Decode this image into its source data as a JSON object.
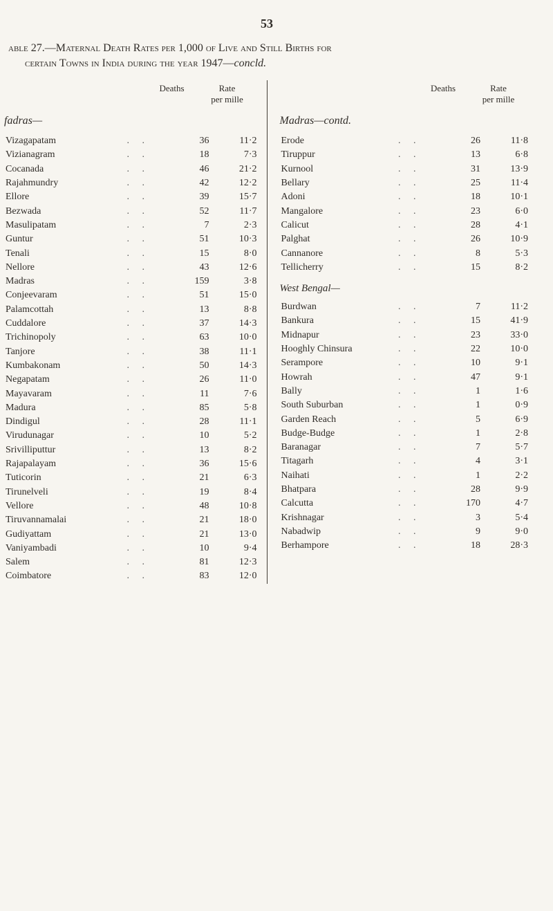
{
  "page_number": "53",
  "title": {
    "line1_prefix": "able 27.—",
    "line1_main": "Maternal Death Rates per 1,000 of Live and Still Births for",
    "line2_main": "certain Towns in India during the year 1947—",
    "line2_italic": "concld."
  },
  "column_headers": {
    "deaths": "Deaths",
    "rate_top": "Rate",
    "rate_bottom_left": "per mille",
    "rate_bottom_right": "per mille"
  },
  "left_section_label": "fadras—",
  "right_contd_label": "Madras—contd.",
  "right_subhead": "West Bengal—",
  "left_rows": [
    {
      "name": "Vizagapatam",
      "deaths": "36",
      "rate": "11·2"
    },
    {
      "name": "Vizianagram",
      "deaths": "18",
      "rate": "7·3"
    },
    {
      "name": "Cocanada",
      "deaths": "46",
      "rate": "21·2"
    },
    {
      "name": "Rajahmundry",
      "deaths": "42",
      "rate": "12·2"
    },
    {
      "name": "Ellore",
      "deaths": "39",
      "rate": "15·7"
    },
    {
      "name": "Bezwada",
      "deaths": "52",
      "rate": "11·7"
    },
    {
      "name": "Masulipatam",
      "deaths": "7",
      "rate": "2·3"
    },
    {
      "name": "Guntur",
      "deaths": "51",
      "rate": "10·3"
    },
    {
      "name": "Tenali",
      "deaths": "15",
      "rate": "8·0"
    },
    {
      "name": "Nellore",
      "deaths": "43",
      "rate": "12·6"
    },
    {
      "name": "Madras",
      "deaths": "159",
      "rate": "3·8"
    },
    {
      "name": "Conjeevaram",
      "deaths": "51",
      "rate": "15·0"
    },
    {
      "name": "Palamcottah",
      "deaths": "13",
      "rate": "8·8"
    },
    {
      "name": "Cuddalore",
      "deaths": "37",
      "rate": "14·3"
    },
    {
      "name": "Trichinopoly",
      "deaths": "63",
      "rate": "10·0"
    },
    {
      "name": "Tanjore",
      "deaths": "38",
      "rate": "11·1"
    },
    {
      "name": "Kumbakonam",
      "deaths": "50",
      "rate": "14·3"
    },
    {
      "name": "Negapatam",
      "deaths": "26",
      "rate": "11·0"
    },
    {
      "name": "Mayavaram",
      "deaths": "11",
      "rate": "7·6"
    },
    {
      "name": "Madura",
      "deaths": "85",
      "rate": "5·8"
    },
    {
      "name": "Dindigul",
      "deaths": "28",
      "rate": "11·1"
    },
    {
      "name": "Virudunagar",
      "deaths": "10",
      "rate": "5·2"
    },
    {
      "name": "Srivilliputtur",
      "deaths": "13",
      "rate": "8·2"
    },
    {
      "name": "Rajapalayam",
      "deaths": "36",
      "rate": "15·6"
    },
    {
      "name": "Tuticorin",
      "deaths": "21",
      "rate": "6·3"
    },
    {
      "name": "Tirunelveli",
      "deaths": "19",
      "rate": "8·4"
    },
    {
      "name": "Vellore",
      "deaths": "48",
      "rate": "10·8"
    },
    {
      "name": "Tiruvannamalai",
      "deaths": "21",
      "rate": "18·0"
    },
    {
      "name": "Gudiyattam",
      "deaths": "21",
      "rate": "13·0"
    },
    {
      "name": "Vaniyambadi",
      "deaths": "10",
      "rate": "9·4"
    },
    {
      "name": "Salem",
      "deaths": "81",
      "rate": "12·3"
    },
    {
      "name": "Coimbatore",
      "deaths": "83",
      "rate": "12·0"
    }
  ],
  "right_rows_a": [
    {
      "name": "Erode",
      "deaths": "26",
      "rate": "11·8"
    },
    {
      "name": "Tiruppur",
      "deaths": "13",
      "rate": "6·8"
    },
    {
      "name": "Kurnool",
      "deaths": "31",
      "rate": "13·9"
    },
    {
      "name": "Bellary",
      "deaths": "25",
      "rate": "11·4"
    },
    {
      "name": "Adoni",
      "deaths": "18",
      "rate": "10·1"
    },
    {
      "name": "Mangalore",
      "deaths": "23",
      "rate": "6·0"
    },
    {
      "name": "Calicut",
      "deaths": "28",
      "rate": "4·1"
    },
    {
      "name": "Palghat",
      "deaths": "26",
      "rate": "10·9"
    },
    {
      "name": "Cannanore",
      "deaths": "8",
      "rate": "5·3"
    },
    {
      "name": "Tellicherry",
      "deaths": "15",
      "rate": "8·2"
    }
  ],
  "right_rows_b": [
    {
      "name": "Burdwan",
      "deaths": "7",
      "rate": "11·2"
    },
    {
      "name": "Bankura",
      "deaths": "15",
      "rate": "41·9"
    },
    {
      "name": "Midnapur",
      "deaths": "23",
      "rate": "33·0"
    },
    {
      "name": "Hooghly Chinsura",
      "deaths": "22",
      "rate": "10·0"
    },
    {
      "name": "Serampore",
      "deaths": "10",
      "rate": "9·1"
    },
    {
      "name": "Howrah",
      "deaths": "47",
      "rate": "9·1"
    },
    {
      "name": "Bally",
      "deaths": "1",
      "rate": "1·6"
    },
    {
      "name": "South Suburban",
      "deaths": "1",
      "rate": "0·9"
    },
    {
      "name": "Garden Reach",
      "deaths": "5",
      "rate": "6·9"
    },
    {
      "name": "Budge-Budge",
      "deaths": "1",
      "rate": "2·8"
    },
    {
      "name": "Baranagar",
      "deaths": "7",
      "rate": "5·7"
    },
    {
      "name": "Titagarh",
      "deaths": "4",
      "rate": "3·1"
    },
    {
      "name": "Naihati",
      "deaths": "1",
      "rate": "2·2"
    },
    {
      "name": "Bhatpara",
      "deaths": "28",
      "rate": "9·9"
    },
    {
      "name": "Calcutta",
      "deaths": "170",
      "rate": "4·7"
    },
    {
      "name": "Krishnagar",
      "deaths": "3",
      "rate": "5·4"
    },
    {
      "name": "Nabadwip",
      "deaths": "9",
      "rate": "9·0"
    },
    {
      "name": "Berhampore",
      "deaths": "18",
      "rate": "28·3"
    }
  ]
}
